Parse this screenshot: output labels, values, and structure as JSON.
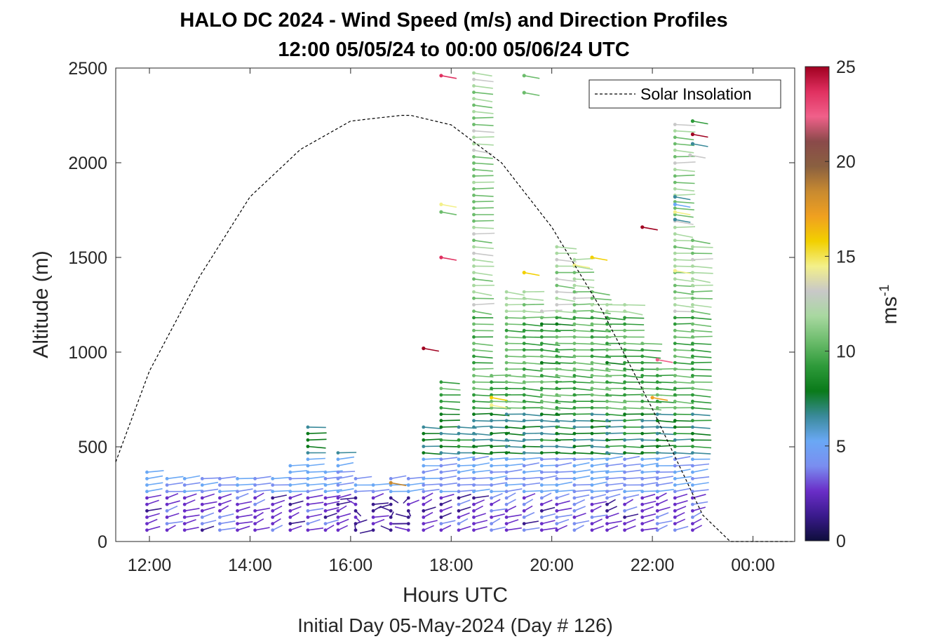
{
  "chart_data": {
    "type": "wind-barb-profile",
    "title": [
      "HALO DC 2024 - Wind Speed (m/s) and Direction Profiles",
      "12:00 05/05/24 to 00:00 05/06/24  UTC"
    ],
    "xlabel": "Hours UTC",
    "subtitle": "Initial Day 05-May-2024 (Day # 126)",
    "ylabel": "Altitude (m)",
    "x_ticks": [
      "12:00",
      "14:00",
      "16:00",
      "18:00",
      "20:00",
      "22:00",
      "00:00"
    ],
    "x_tick_hours": [
      12,
      14,
      16,
      18,
      20,
      22,
      24
    ],
    "xlim_hours": [
      11.33,
      24.83
    ],
    "ylim": [
      0,
      2500
    ],
    "y_ticks": [
      0,
      500,
      1000,
      1500,
      2000,
      2500
    ],
    "grid": false,
    "legend": {
      "entries": [
        "Solar Insolation"
      ],
      "position": "top-right"
    },
    "colorbar": {
      "label": "ms",
      "label_superscript": "-1",
      "range": [
        0,
        25
      ],
      "ticks": [
        0,
        5,
        10,
        15,
        20,
        25
      ],
      "colors": [
        "#0e0e3c",
        "#3a1a8c",
        "#6a2ec8",
        "#7a8ef0",
        "#6aa8f5",
        "#3a8a9a",
        "#0a7a1a",
        "#2e9a3a",
        "#6cbc6c",
        "#a8d8a0",
        "#c8c8c8",
        "#f3f08a",
        "#f2d000",
        "#f0a020",
        "#c88a30",
        "#8a6040",
        "#8a4a4a",
        "#f0608a",
        "#e03060",
        "#a00020"
      ]
    },
    "solar_insolation": {
      "x_hours": [
        11.33,
        12,
        13,
        14,
        15,
        16,
        17,
        17.2,
        18,
        19,
        20,
        21,
        22,
        23,
        23.55,
        24.83
      ],
      "altitude_m": [
        420,
        900,
        1400,
        1820,
        2070,
        2220,
        2250,
        2250,
        2200,
        2000,
        1660,
        1220,
        700,
        140,
        0,
        0
      ]
    },
    "profiles": [
      {
        "t": 11.95,
        "top": 380,
        "band": "low"
      },
      {
        "t": 12.35,
        "top": 340,
        "band": "low"
      },
      {
        "t": 12.7,
        "top": 340,
        "band": "low"
      },
      {
        "t": 13.05,
        "top": 340,
        "band": "low"
      },
      {
        "t": 13.4,
        "top": 340,
        "band": "low"
      },
      {
        "t": 13.75,
        "top": 340,
        "band": "low"
      },
      {
        "t": 14.1,
        "top": 350,
        "band": "low"
      },
      {
        "t": 14.45,
        "top": 360,
        "band": "low"
      },
      {
        "t": 14.8,
        "top": 420,
        "band": "low"
      },
      {
        "t": 15.15,
        "top": 610,
        "band": "low"
      },
      {
        "t": 15.5,
        "top": 370,
        "band": "low"
      },
      {
        "t": 15.75,
        "top": 500,
        "band": "low"
      },
      {
        "t": 16.1,
        "top": 340,
        "band": "calm"
      },
      {
        "t": 16.45,
        "top": 330,
        "band": "calm"
      },
      {
        "t": 16.8,
        "top": 340,
        "band": "calm"
      },
      {
        "t": 17.15,
        "top": 360,
        "band": "calm"
      },
      {
        "t": 17.45,
        "top": 620,
        "band": "mid"
      },
      {
        "t": 17.8,
        "top": 850,
        "band": "mid"
      },
      {
        "t": 18.15,
        "top": 620,
        "band": "mid"
      },
      {
        "t": 18.45,
        "top": 2490,
        "band": "high"
      },
      {
        "t": 18.8,
        "top": 900,
        "band": "mid"
      },
      {
        "t": 19.1,
        "top": 1320,
        "band": "mid"
      },
      {
        "t": 19.45,
        "top": 1320,
        "band": "mid"
      },
      {
        "t": 19.8,
        "top": 1240,
        "band": "mid"
      },
      {
        "t": 20.1,
        "top": 1560,
        "band": "mid"
      },
      {
        "t": 20.45,
        "top": 1510,
        "band": "mid"
      },
      {
        "t": 20.8,
        "top": 1330,
        "band": "mid"
      },
      {
        "t": 21.1,
        "top": 1280,
        "band": "mid"
      },
      {
        "t": 21.45,
        "top": 1250,
        "band": "mid"
      },
      {
        "t": 21.8,
        "top": 1050,
        "band": "mid"
      },
      {
        "t": 22.1,
        "top": 940,
        "band": "mid"
      },
      {
        "t": 22.45,
        "top": 2220,
        "band": "high"
      },
      {
        "t": 22.8,
        "top": 1600,
        "band": "mid"
      }
    ]
  }
}
